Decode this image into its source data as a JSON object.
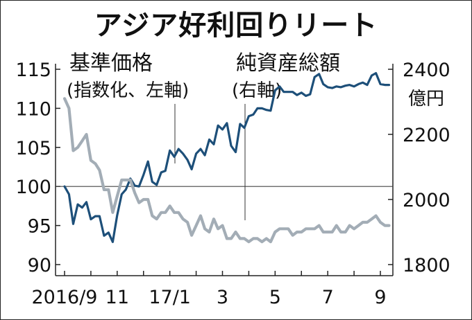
{
  "title": "アジア好利回りリート",
  "left_label": "基準価格",
  "left_sub": "(指数化、左軸)",
  "right_label": "純資産総額",
  "right_sub": "(右軸)",
  "right_unit": "億円",
  "colors": {
    "price": "#1d4f79",
    "assets": "#a3adb6",
    "ref": "#444444"
  },
  "chart_data": {
    "type": "line",
    "title": "アジア好利回りリート",
    "x_tick_labels": [
      "2016/9",
      "11",
      "17/1",
      "3",
      "5",
      "7",
      "9"
    ],
    "x_tick_months": [
      0,
      2,
      4,
      6,
      8,
      10,
      12
    ],
    "y_left": {
      "label": "基準価格(指数化、左軸)",
      "ylim": [
        88,
        116
      ],
      "ticks": [
        90,
        95,
        100,
        105,
        110,
        115
      ]
    },
    "y_right": {
      "label": "純資産総額(右軸)",
      "unit": "億円",
      "ylim": [
        1760,
        2430
      ],
      "ticks": [
        1800,
        2000,
        2200,
        2400
      ]
    },
    "reference_line": 100,
    "series": [
      {
        "name": "基準価格",
        "axis": "left",
        "color": "#1d4f79",
        "months": [
          0.0,
          0.17,
          0.33,
          0.5,
          0.67,
          0.83,
          1.0,
          1.17,
          1.33,
          1.5,
          1.67,
          1.83,
          2.0,
          2.17,
          2.33,
          2.5,
          2.67,
          2.83,
          3.0,
          3.17,
          3.33,
          3.5,
          3.67,
          3.83,
          4.0,
          4.17,
          4.33,
          4.5,
          4.67,
          4.83,
          5.0,
          5.17,
          5.33,
          5.5,
          5.67,
          5.83,
          6.0,
          6.17,
          6.33,
          6.5,
          6.67,
          6.83,
          7.0,
          7.17,
          7.33,
          7.5,
          7.67,
          7.83,
          8.0,
          8.17,
          8.33,
          8.5,
          8.67,
          8.83,
          9.0,
          9.17,
          9.33,
          9.5,
          9.67,
          9.83,
          10.0,
          10.17,
          10.33,
          10.5,
          10.67,
          10.83,
          11.0,
          11.17,
          11.33,
          11.5,
          11.67,
          11.83,
          12.0,
          12.17,
          12.33
        ],
        "values": [
          100.0,
          99.0,
          95.2,
          97.7,
          97.3,
          98.0,
          95.8,
          96.2,
          96.2,
          93.7,
          94.1,
          92.9,
          96.3,
          99.0,
          99.6,
          101.0,
          100.1,
          100.0,
          101.5,
          103.2,
          100.6,
          100.2,
          101.8,
          102.0,
          104.6,
          103.8,
          104.8,
          104.2,
          103.4,
          102.2,
          104.2,
          104.8,
          104.0,
          106.0,
          105.4,
          107.8,
          107.3,
          108.1,
          105.2,
          104.4,
          108.0,
          107.5,
          109.0,
          109.2,
          110.0,
          110.0,
          109.8,
          109.7,
          112.3,
          112.8,
          112.1,
          112.1,
          112.1,
          111.7,
          112.0,
          111.6,
          111.8,
          114.0,
          114.4,
          113.1,
          112.7,
          112.6,
          112.8,
          112.7,
          112.9,
          113.0,
          112.8,
          113.1,
          113.3,
          113.0,
          114.2,
          114.5,
          113.1,
          113.0,
          113.0
        ]
      },
      {
        "name": "純資産総額",
        "axis": "right",
        "color": "#a3adb6",
        "months": [
          0.0,
          0.17,
          0.33,
          0.5,
          0.67,
          0.83,
          1.0,
          1.17,
          1.33,
          1.5,
          1.67,
          1.83,
          2.0,
          2.17,
          2.33,
          2.5,
          2.67,
          2.83,
          3.0,
          3.17,
          3.33,
          3.5,
          3.67,
          3.83,
          4.0,
          4.17,
          4.33,
          4.5,
          4.67,
          4.83,
          5.0,
          5.17,
          5.33,
          5.5,
          5.67,
          5.83,
          6.0,
          6.17,
          6.33,
          6.5,
          6.67,
          6.83,
          7.0,
          7.17,
          7.33,
          7.5,
          7.67,
          7.83,
          8.0,
          8.17,
          8.33,
          8.5,
          8.67,
          8.83,
          9.0,
          9.17,
          9.33,
          9.5,
          9.67,
          9.83,
          10.0,
          10.17,
          10.33,
          10.5,
          10.67,
          10.83,
          11.0,
          11.17,
          11.33,
          11.5,
          11.67,
          11.83,
          12.0,
          12.17,
          12.33
        ],
        "values": [
          2310,
          2280,
          2150,
          2160,
          2180,
          2200,
          2120,
          2110,
          2090,
          2030,
          2030,
          1960,
          2010,
          2060,
          2060,
          2060,
          2020,
          1990,
          2000,
          2000,
          1950,
          1940,
          1960,
          1960,
          1980,
          1960,
          1960,
          1940,
          1930,
          1890,
          1920,
          1950,
          1910,
          1900,
          1940,
          1910,
          1920,
          1880,
          1880,
          1900,
          1880,
          1880,
          1870,
          1880,
          1880,
          1870,
          1880,
          1870,
          1900,
          1910,
          1910,
          1910,
          1890,
          1900,
          1900,
          1910,
          1910,
          1910,
          1920,
          1900,
          1900,
          1900,
          1920,
          1900,
          1900,
          1920,
          1910,
          1920,
          1930,
          1930,
          1940,
          1950,
          1930,
          1920,
          1920
        ]
      }
    ]
  }
}
